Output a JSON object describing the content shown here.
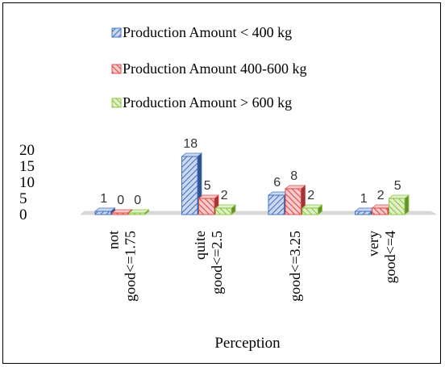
{
  "chart_data": {
    "type": "bar",
    "title": "",
    "xlabel": "Perception",
    "ylabel": "",
    "ylim": [
      0,
      20
    ],
    "y_ticks": [
      0,
      5,
      10,
      15,
      20
    ],
    "categories": [
      [
        "not",
        "good<=1.75"
      ],
      [
        "quite",
        "good<=2.5"
      ],
      [
        "good<=3.25"
      ],
      [
        "very",
        "good<=4"
      ]
    ],
    "series": [
      {
        "name": "Production Amount < 400 kg",
        "values": [
          1,
          18,
          6,
          1
        ],
        "color": "#4472C4"
      },
      {
        "name": "Production Amount 400-600 kg",
        "values": [
          0,
          5,
          8,
          2
        ],
        "color": "#E04848"
      },
      {
        "name": "Production Amount > 600 kg",
        "values": [
          0,
          2,
          2,
          5
        ],
        "color": "#8DC63F"
      }
    ],
    "legend_position": "top",
    "grid": false,
    "style": "3d-clustered-hatched"
  }
}
